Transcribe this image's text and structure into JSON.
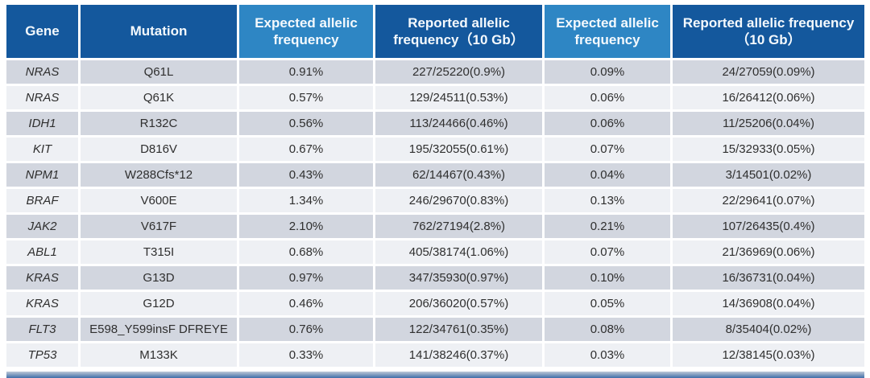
{
  "page": {
    "background": "#ffffff"
  },
  "table": {
    "header": {
      "colors": {
        "dark_blue": "#14589d",
        "light_blue": "#2e86c4",
        "text": "#ffffff"
      },
      "columns": [
        {
          "label": "Gene",
          "variant": "dark"
        },
        {
          "label": "Mutation",
          "variant": "dark"
        },
        {
          "label": "Expected allelic frequency",
          "variant": "light"
        },
        {
          "label": "Reported allelic frequency（10 Gb）",
          "variant": "dark"
        },
        {
          "label": "Expected allelic frequency",
          "variant": "light"
        },
        {
          "label": "Reported allelic frequency（10 Gb）",
          "variant": "dark"
        }
      ]
    },
    "body": {
      "colors": {
        "row_odd": "#d2d6df",
        "row_even": "#eef0f4",
        "text": "#2f2f2f"
      },
      "rows": [
        [
          "NRAS",
          "Q61L",
          "0.91%",
          "227/25220(0.9%)",
          "0.09%",
          "24/27059(0.09%)"
        ],
        [
          "NRAS",
          "Q61K",
          "0.57%",
          "129/24511(0.53%)",
          "0.06%",
          "16/26412(0.06%)"
        ],
        [
          "IDH1",
          "R132C",
          "0.56%",
          "113/24466(0.46%)",
          "0.06%",
          "11/25206(0.04%)"
        ],
        [
          "KIT",
          "D816V",
          "0.67%",
          "195/32055(0.61%)",
          "0.07%",
          "15/32933(0.05%)"
        ],
        [
          "NPM1",
          "W288Cfs*12",
          "0.43%",
          "62/14467(0.43%)",
          "0.04%",
          "3/14501(0.02%)"
        ],
        [
          "BRAF",
          "V600E",
          "1.34%",
          "246/29670(0.83%)",
          "0.13%",
          "22/29641(0.07%)"
        ],
        [
          "JAK2",
          "V617F",
          "2.10%",
          "762/27194(2.8%)",
          "0.21%",
          "107/26435(0.4%)"
        ],
        [
          "ABL1",
          "T315I",
          "0.68%",
          "405/38174(1.06%)",
          "0.07%",
          "21/36969(0.06%)"
        ],
        [
          "KRAS",
          "G13D",
          "0.97%",
          "347/35930(0.97%)",
          "0.10%",
          "16/36731(0.04%)"
        ],
        [
          "KRAS",
          "G12D",
          "0.46%",
          "206/36020(0.57%)",
          "0.05%",
          "14/36908(0.04%)"
        ],
        [
          "FLT3",
          "E598_Y599insF DFREYE",
          "0.76%",
          "122/34761(0.35%)",
          "0.08%",
          "8/35404(0.02%)"
        ],
        [
          "TP53",
          "M133K",
          "0.33%",
          "141/38246(0.37%)",
          "0.03%",
          "12/38145(0.03%)"
        ]
      ]
    }
  },
  "chart_data": {
    "type": "table",
    "columns": [
      "Gene",
      "Mutation",
      "Expected allelic frequency",
      "Reported allelic frequency（10 Gb）",
      "Expected allelic frequency",
      "Reported allelic frequency（10 Gb）"
    ],
    "rows": [
      [
        "NRAS",
        "Q61L",
        "0.91%",
        "227/25220(0.9%)",
        "0.09%",
        "24/27059(0.09%)"
      ],
      [
        "NRAS",
        "Q61K",
        "0.57%",
        "129/24511(0.53%)",
        "0.06%",
        "16/26412(0.06%)"
      ],
      [
        "IDH1",
        "R132C",
        "0.56%",
        "113/24466(0.46%)",
        "0.06%",
        "11/25206(0.04%)"
      ],
      [
        "KIT",
        "D816V",
        "0.67%",
        "195/32055(0.61%)",
        "0.07%",
        "15/32933(0.05%)"
      ],
      [
        "NPM1",
        "W288Cfs*12",
        "0.43%",
        "62/14467(0.43%)",
        "0.04%",
        "3/14501(0.02%)"
      ],
      [
        "BRAF",
        "V600E",
        "1.34%",
        "246/29670(0.83%)",
        "0.13%",
        "22/29641(0.07%)"
      ],
      [
        "JAK2",
        "V617F",
        "2.10%",
        "762/27194(2.8%)",
        "0.21%",
        "107/26435(0.4%)"
      ],
      [
        "ABL1",
        "T315I",
        "0.68%",
        "405/38174(1.06%)",
        "0.07%",
        "21/36969(0.06%)"
      ],
      [
        "KRAS",
        "G13D",
        "0.97%",
        "347/35930(0.97%)",
        "0.10%",
        "16/36731(0.04%)"
      ],
      [
        "KRAS",
        "G12D",
        "0.46%",
        "206/36020(0.57%)",
        "0.05%",
        "14/36908(0.04%)"
      ],
      [
        "FLT3",
        "E598_Y599insF DFREYE",
        "0.76%",
        "122/34761(0.35%)",
        "0.08%",
        "8/35404(0.02%)"
      ],
      [
        "TP53",
        "M133K",
        "0.33%",
        "141/38246(0.37%)",
        "0.03%",
        "12/38145(0.03%)"
      ]
    ]
  }
}
